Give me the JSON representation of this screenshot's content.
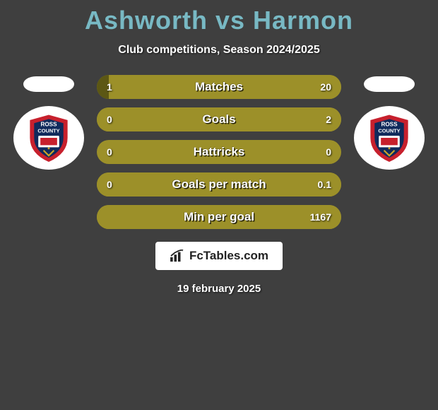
{
  "colors": {
    "page_bg": "#3f3f3f",
    "title": "#78b9c4",
    "text_light": "#ffffff",
    "bar_darker": "#5c5714",
    "bar_lighter": "#9c9029",
    "neutral_bar": "#9c9029",
    "flag_bg": "#ffffff",
    "attribution_bg": "#ffffff",
    "attribution_text": "#222222",
    "badge_bg": "#ffffff",
    "badge_red": "#c7202d",
    "badge_navy": "#102a5c",
    "badge_gold": "#c9a227"
  },
  "title": "Ashworth vs Harmon",
  "subtitle": "Club competitions, Season 2024/2025",
  "player_left": {
    "flag_label": "flag-left",
    "club_label": "Ross County"
  },
  "player_right": {
    "flag_label": "flag-right",
    "club_label": "Ross County"
  },
  "stats": [
    {
      "label": "Matches",
      "left_val": "1",
      "right_val": "20",
      "left_pct": 4.8,
      "right_pct": 95.2,
      "neutral": false
    },
    {
      "label": "Goals",
      "left_val": "0",
      "right_val": "2",
      "left_pct": 0,
      "right_pct": 100,
      "neutral": false
    },
    {
      "label": "Hattricks",
      "left_val": "0",
      "right_val": "0",
      "left_pct": 0,
      "right_pct": 0,
      "neutral": true
    },
    {
      "label": "Goals per match",
      "left_val": "0",
      "right_val": "0.1",
      "left_pct": 0,
      "right_pct": 100,
      "neutral": false
    },
    {
      "label": "Min per goal",
      "left_val": "",
      "right_val": "1167",
      "left_pct": 0,
      "right_pct": 100,
      "neutral": false
    }
  ],
  "attribution": "FcTables.com",
  "footer_date": "19 february 2025",
  "badge_text": {
    "line1": "ROSS",
    "line2": "COUNTY"
  }
}
